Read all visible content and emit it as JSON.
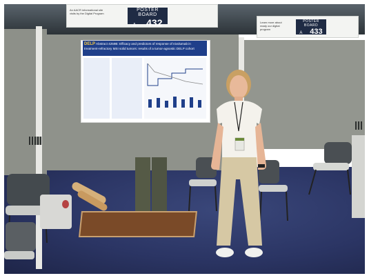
{
  "headers": {
    "left_header_text": "An AACR informational site visits by the Digital Program",
    "right_header_text": "Learn more about ready our digital program"
  },
  "board_432": {
    "label_top": "POSTER BOARD",
    "letter": "A",
    "number": "432"
  },
  "board_433": {
    "label_top": "POSTER BOARD",
    "letter": "A",
    "number": "433"
  },
  "poster": {
    "logo": "DELP",
    "title": "Abstract 4259B: Efficacy and predictors of response of nivolumab in treatment-refractory MSI solid tumors: results of a tumor-agnostic DELP cohort"
  },
  "colors": {
    "carpet": "#2b3564",
    "panel": "#8f928b",
    "poster_header": "#1f3f8a",
    "board_tag": "#1f2b44"
  }
}
